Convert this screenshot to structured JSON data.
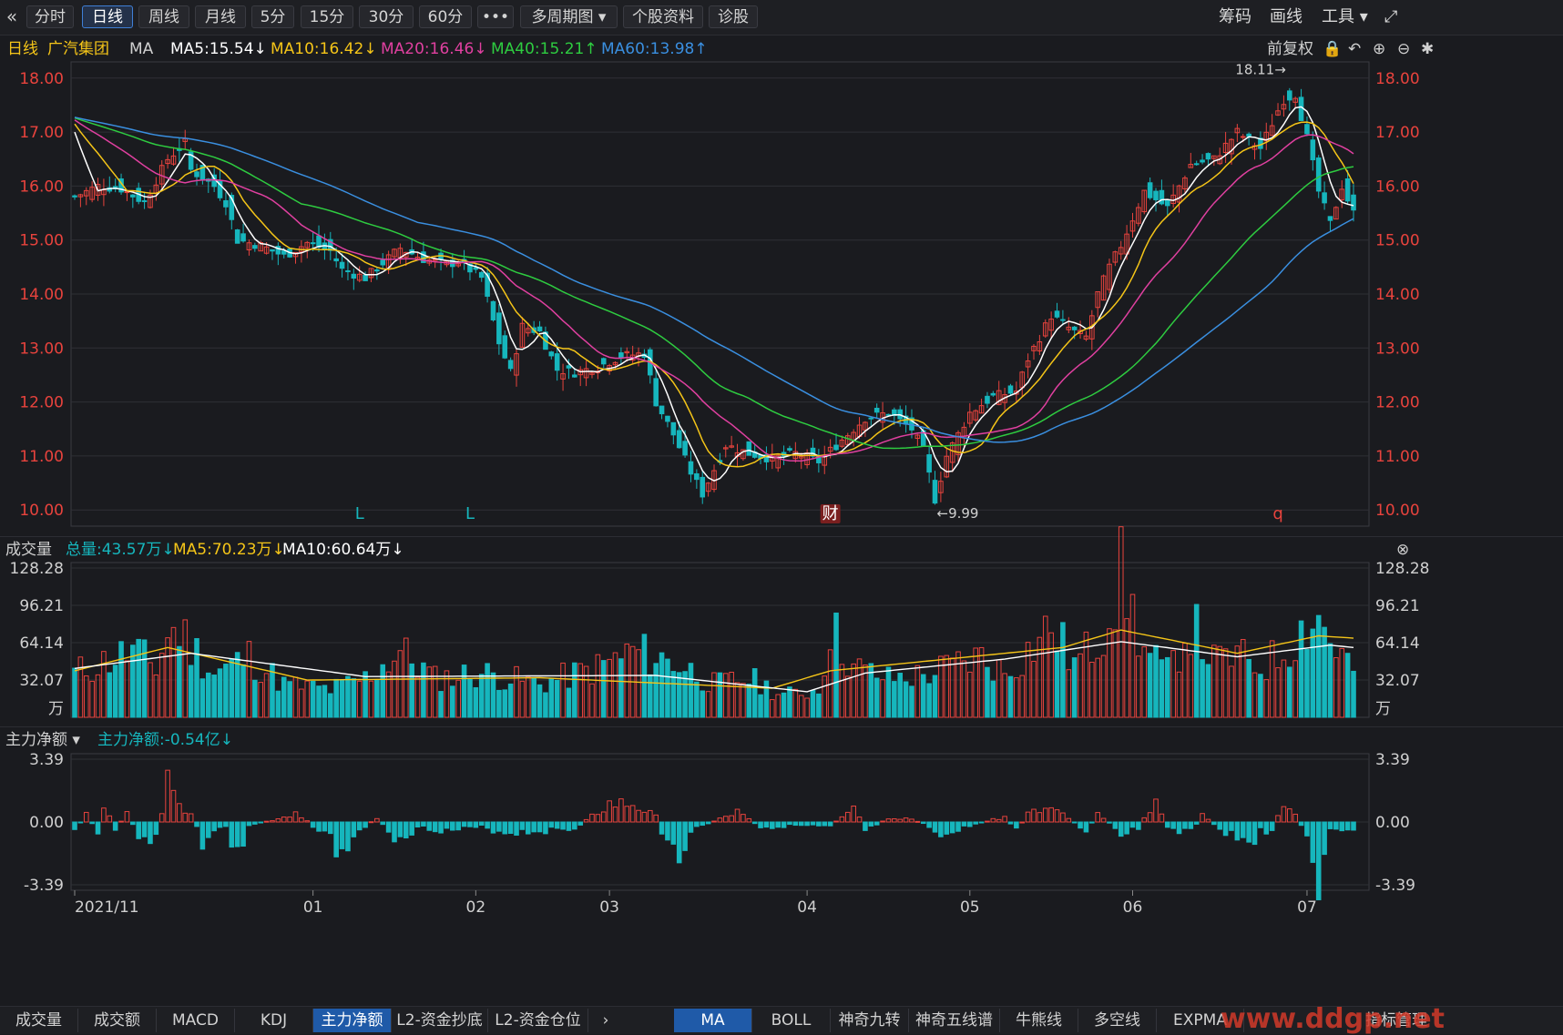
{
  "toolbar": {
    "collapse_glyph": "«",
    "periods": [
      "分时",
      "日线",
      "周线",
      "月线",
      "5分",
      "15分",
      "30分",
      "60分",
      "•••",
      "多周期图 ▾",
      "个股资料",
      "诊股"
    ],
    "active_index": 1,
    "right": [
      "筹码",
      "画线",
      "工具 ▾"
    ],
    "fullscreen_glyph": "⤢"
  },
  "info": {
    "period": "日线",
    "stock": "广汽集团",
    "indicator": "MA",
    "ma5": "MA5:15.54↓",
    "ma10": "MA10:16.42↓",
    "ma20": "MA20:16.46↓",
    "ma40": "MA40:15.21↑",
    "ma60": "MA60:13.98↑",
    "adjust": "前复权"
  },
  "colors": {
    "up": "#e8433d",
    "down": "#16b6bd",
    "ma5": "#ffffff",
    "ma10": "#f5c518",
    "ma20": "#e040a0",
    "ma40": "#2ecc40",
    "ma60": "#3a8fe0",
    "grid": "#2f3036",
    "axis_text_red": "#e8433d",
    "axis_text_white": "#d0d0d0"
  },
  "volume_panel": {
    "title": "成交量",
    "total": "总量:43.57万↓",
    "ma5": "MA5:70.23万↓",
    "ma10": "MA10:60.64万↓",
    "unit": "万"
  },
  "flow_panel": {
    "title": "主力净额 ▾",
    "value": "主力净额:-0.54亿↓"
  },
  "bottom_tabs_left": [
    "成交量",
    "成交额",
    "MACD",
    "KDJ",
    "主力净额",
    "L2-资金抄底",
    "L2-资金仓位"
  ],
  "bottom_tabs_left_active": 4,
  "bottom_tabs_right": [
    "MA",
    "BOLL",
    "神奇九转",
    "神奇五线谱",
    "牛熊线",
    "多空线",
    "EXPMA",
    "指标管理"
  ],
  "bottom_tabs_right_active": 0,
  "watermark": "www.ddgp.net",
  "chart_data": {
    "type": "candlestick",
    "price_axis_ticks": [
      "18.00",
      "17.00",
      "16.00",
      "15.00",
      "14.00",
      "13.00",
      "12.00",
      "11.00",
      "10.00"
    ],
    "price_range": [
      9.7,
      18.3
    ],
    "high_annotation": "18.11→",
    "low_annotation": "←9.99",
    "markers": [
      {
        "text": "L",
        "date_index": 49,
        "color": "#16b6bd"
      },
      {
        "text": "L",
        "date_index": 68,
        "color": "#16b6bd"
      },
      {
        "text": "财",
        "date_index": 130,
        "color": "#e8433d"
      },
      {
        "text": "q",
        "date_index": 207,
        "color": "#e8433d"
      }
    ],
    "x_labels": [
      {
        "label": "2021/11",
        "index": 0
      },
      {
        "label": "01",
        "index": 41
      },
      {
        "label": "02",
        "index": 69
      },
      {
        "label": "03",
        "index": 92
      },
      {
        "label": "04",
        "index": 126
      },
      {
        "label": "05",
        "index": 154
      },
      {
        "label": "06",
        "index": 182
      },
      {
        "label": "07",
        "index": 212
      }
    ],
    "anchor_closes": [
      [
        0,
        15.8
      ],
      [
        4,
        16.0
      ],
      [
        8,
        15.95
      ],
      [
        12,
        15.7
      ],
      [
        16,
        16.5
      ],
      [
        19,
        16.8
      ],
      [
        20,
        16.3
      ],
      [
        24,
        16.0
      ],
      [
        26,
        15.7
      ],
      [
        28,
        15.0
      ],
      [
        32,
        14.9
      ],
      [
        36,
        14.7
      ],
      [
        40,
        14.95
      ],
      [
        44,
        14.8
      ],
      [
        46,
        14.45
      ],
      [
        50,
        14.3
      ],
      [
        56,
        14.85
      ],
      [
        60,
        14.65
      ],
      [
        64,
        14.55
      ],
      [
        66,
        14.6
      ],
      [
        70,
        14.3
      ],
      [
        73,
        13.1
      ],
      [
        75,
        12.55
      ],
      [
        77,
        13.4
      ],
      [
        80,
        13.3
      ],
      [
        83,
        12.6
      ],
      [
        86,
        12.55
      ],
      [
        90,
        12.65
      ],
      [
        94,
        12.85
      ],
      [
        98,
        12.9
      ],
      [
        100,
        12.0
      ],
      [
        103,
        11.4
      ],
      [
        106,
        10.7
      ],
      [
        108,
        10.3
      ],
      [
        112,
        11.2
      ],
      [
        116,
        11.05
      ],
      [
        120,
        10.95
      ],
      [
        124,
        11.05
      ],
      [
        128,
        10.9
      ],
      [
        132,
        11.3
      ],
      [
        136,
        11.7
      ],
      [
        140,
        11.8
      ],
      [
        144,
        11.5
      ],
      [
        146,
        11.1
      ],
      [
        148,
        10.2
      ],
      [
        150,
        11.0
      ],
      [
        154,
        11.8
      ],
      [
        158,
        12.1
      ],
      [
        162,
        12.2
      ],
      [
        164,
        12.8
      ],
      [
        168,
        13.6
      ],
      [
        172,
        13.3
      ],
      [
        174,
        13.2
      ],
      [
        176,
        14.0
      ],
      [
        178,
        14.5
      ],
      [
        180,
        14.9
      ],
      [
        184,
        15.9
      ],
      [
        188,
        15.6
      ],
      [
        192,
        16.4
      ],
      [
        196,
        16.5
      ],
      [
        200,
        17.0
      ],
      [
        204,
        16.7
      ],
      [
        207,
        17.4
      ],
      [
        208,
        17.6
      ],
      [
        210,
        17.7
      ],
      [
        212,
        16.9
      ],
      [
        214,
        15.9
      ],
      [
        216,
        15.3
      ],
      [
        218,
        16.0
      ],
      [
        220,
        15.5
      ]
    ],
    "ma_last": {
      "ma5": 15.54,
      "ma10": 16.42,
      "ma20": 16.46,
      "ma40": 15.21,
      "ma60": 13.98
    },
    "volume": {
      "axis_ticks": [
        "128.28",
        "96.21",
        "64.14",
        "32.07"
      ],
      "max": 128.28,
      "anchor_values": [
        [
          0,
          40
        ],
        [
          10,
          60
        ],
        [
          14,
          45
        ],
        [
          16,
          75
        ],
        [
          18,
          78
        ],
        [
          24,
          40
        ],
        [
          30,
          55
        ],
        [
          36,
          30
        ],
        [
          44,
          25
        ],
        [
          50,
          35
        ],
        [
          56,
          60
        ],
        [
          62,
          35
        ],
        [
          70,
          40
        ],
        [
          80,
          30
        ],
        [
          90,
          45
        ],
        [
          96,
          60
        ],
        [
          104,
          48
        ],
        [
          110,
          30
        ],
        [
          116,
          35
        ],
        [
          122,
          20
        ],
        [
          128,
          25
        ],
        [
          130,
          82
        ],
        [
          134,
          45
        ],
        [
          140,
          35
        ],
        [
          146,
          38
        ],
        [
          150,
          45
        ],
        [
          156,
          55
        ],
        [
          160,
          40
        ],
        [
          164,
          60
        ],
        [
          168,
          82
        ],
        [
          172,
          48
        ],
        [
          176,
          70
        ],
        [
          180,
          128
        ],
        [
          184,
          60
        ],
        [
          188,
          40
        ],
        [
          192,
          85
        ],
        [
          196,
          50
        ],
        [
          200,
          55
        ],
        [
          204,
          45
        ],
        [
          208,
          60
        ],
        [
          212,
          85
        ],
        [
          214,
          92
        ],
        [
          216,
          70
        ],
        [
          220,
          43
        ]
      ],
      "ma5_anchor": [
        [
          0,
          40
        ],
        [
          16,
          60
        ],
        [
          40,
          32
        ],
        [
          80,
          34
        ],
        [
          120,
          25
        ],
        [
          130,
          40
        ],
        [
          140,
          45
        ],
        [
          170,
          60
        ],
        [
          180,
          75
        ],
        [
          200,
          55
        ],
        [
          214,
          70
        ],
        [
          220,
          68
        ]
      ],
      "ma10_anchor": [
        [
          0,
          42
        ],
        [
          20,
          55
        ],
        [
          50,
          35
        ],
        [
          100,
          36
        ],
        [
          126,
          22
        ],
        [
          136,
          38
        ],
        [
          160,
          50
        ],
        [
          180,
          65
        ],
        [
          200,
          52
        ],
        [
          216,
          62
        ],
        [
          220,
          60
        ]
      ]
    },
    "main_flow": {
      "axis_ticks": [
        "3.39",
        "0.00",
        "-3.39"
      ],
      "range": [
        -3.39,
        3.39
      ],
      "anchor_values": [
        [
          0,
          -0.5
        ],
        [
          2,
          0.4
        ],
        [
          4,
          -0.6
        ],
        [
          5,
          1.0
        ],
        [
          7,
          -0.5
        ],
        [
          9,
          0.6
        ],
        [
          11,
          -0.8
        ],
        [
          13,
          -1.1
        ],
        [
          14,
          -0.6
        ],
        [
          16,
          2.2
        ],
        [
          18,
          0.8
        ],
        [
          20,
          0.6
        ],
        [
          22,
          -1.2
        ],
        [
          24,
          -0.4
        ],
        [
          26,
          -0.3
        ],
        [
          28,
          -2.1
        ],
        [
          30,
          -0.2
        ],
        [
          35,
          0.2
        ],
        [
          38,
          0.6
        ],
        [
          42,
          -0.5
        ],
        [
          44,
          -0.9
        ],
        [
          46,
          -2.1
        ],
        [
          48,
          -0.8
        ],
        [
          52,
          0.3
        ],
        [
          55,
          -0.9
        ],
        [
          60,
          -0.3
        ],
        [
          64,
          -0.5
        ],
        [
          70,
          -0.3
        ],
        [
          74,
          -0.6
        ],
        [
          80,
          -0.5
        ],
        [
          86,
          -0.4
        ],
        [
          92,
          1.1
        ],
        [
          96,
          1.1
        ],
        [
          100,
          0.3
        ],
        [
          102,
          -1.3
        ],
        [
          104,
          -1.9
        ],
        [
          106,
          -0.5
        ],
        [
          114,
          0.6
        ],
        [
          118,
          -0.3
        ],
        [
          124,
          -0.2
        ],
        [
          130,
          -0.3
        ],
        [
          134,
          1.2
        ],
        [
          136,
          -0.6
        ],
        [
          140,
          0.3
        ],
        [
          144,
          0.2
        ],
        [
          150,
          -0.8
        ],
        [
          154,
          -0.2
        ],
        [
          160,
          0.3
        ],
        [
          162,
          -0.5
        ],
        [
          164,
          0.5
        ],
        [
          168,
          0.8
        ],
        [
          170,
          0.4
        ],
        [
          174,
          -0.5
        ],
        [
          176,
          0.4
        ],
        [
          180,
          -0.6
        ],
        [
          183,
          -0.3
        ],
        [
          186,
          1.2
        ],
        [
          188,
          -0.5
        ],
        [
          192,
          -0.6
        ],
        [
          194,
          0.4
        ],
        [
          198,
          -0.7
        ],
        [
          200,
          -0.9
        ],
        [
          202,
          -1.8
        ],
        [
          204,
          -0.3
        ],
        [
          206,
          -0.7
        ],
        [
          208,
          1.4
        ],
        [
          210,
          0.5
        ],
        [
          212,
          -0.8
        ],
        [
          214,
          -4.0
        ],
        [
          216,
          -0.5
        ],
        [
          218,
          -0.8
        ],
        [
          220,
          -0.54
        ]
      ]
    }
  }
}
